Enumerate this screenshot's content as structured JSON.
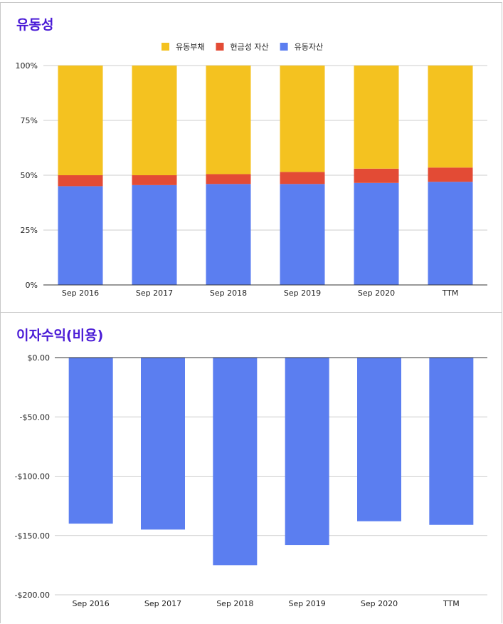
{
  "chart_data": [
    {
      "type": "bar",
      "stacked": true,
      "normalized": true,
      "title": "유동성",
      "categories": [
        "Sep 2016",
        "Sep 2017",
        "Sep 2018",
        "Sep 2019",
        "Sep 2020",
        "TTM"
      ],
      "series": [
        {
          "name": "유동자산",
          "values": [
            45,
            45.5,
            46,
            46,
            46.5,
            47
          ],
          "color": "#5b7ef0"
        },
        {
          "name": "현금성 자산",
          "values": [
            5,
            4.5,
            4.5,
            5.5,
            6.5,
            6.5
          ],
          "color": "#e34b35"
        },
        {
          "name": "유동부채",
          "values": [
            50,
            50,
            49.5,
            48.5,
            47,
            46.5
          ],
          "color": "#f4c220"
        }
      ],
      "legend_order": [
        "유동부채",
        "현금성 자산",
        "유동자산"
      ],
      "yticks": [
        "0%",
        "25%",
        "50%",
        "75%",
        "100%"
      ],
      "ylim": [
        0,
        100
      ],
      "legend_position": "top",
      "grid": true
    },
    {
      "type": "bar",
      "title": "이자수익(비용)",
      "categories": [
        "Sep 2016",
        "Sep 2017",
        "Sep 2018",
        "Sep 2019",
        "Sep 2020",
        "TTM"
      ],
      "values": [
        -140,
        -145,
        -175,
        -158,
        -138,
        -141
      ],
      "color": "#5b7ef0",
      "yticks": [
        "$0.00",
        "-$50.00",
        "-$100.00",
        "-$150.00",
        "-$200.00"
      ],
      "ylim": [
        -200,
        0
      ],
      "grid": true
    }
  ]
}
